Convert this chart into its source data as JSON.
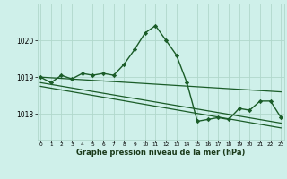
{
  "title": "Graphe pression niveau de la mer (hPa)",
  "background_color": "#cff0ea",
  "grid_color": "#b0d8cc",
  "line_color": "#1a5c28",
  "x_ticks": [
    0,
    1,
    2,
    3,
    4,
    5,
    6,
    7,
    8,
    9,
    10,
    11,
    12,
    13,
    14,
    15,
    16,
    17,
    18,
    19,
    20,
    21,
    22,
    23
  ],
  "y_ticks": [
    1018,
    1019,
    1020
  ],
  "ylim": [
    1017.3,
    1021.0
  ],
  "xlim": [
    -0.3,
    23.3
  ],
  "series": [
    {
      "x": [
        0,
        1,
        2,
        3,
        4,
        5,
        6,
        7,
        8,
        9,
        10,
        11,
        12,
        13,
        14,
        15,
        16,
        17,
        18,
        19,
        20,
        21,
        22,
        23
      ],
      "y": [
        1019.0,
        1018.85,
        1019.05,
        1018.95,
        1019.1,
        1019.05,
        1019.1,
        1019.05,
        1019.35,
        1019.75,
        1020.2,
        1020.4,
        1020.0,
        1019.6,
        1018.85,
        1017.8,
        1017.85,
        1017.9,
        1017.85,
        1018.15,
        1018.1,
        1018.35,
        1018.35,
        1017.9
      ],
      "marker": "D",
      "markersize": 2.2,
      "linewidth": 1.0,
      "has_marker": true
    },
    {
      "x": [
        0,
        23
      ],
      "y": [
        1019.0,
        1018.6
      ],
      "marker": null,
      "markersize": 0,
      "linewidth": 0.9,
      "has_marker": false
    },
    {
      "x": [
        0,
        23
      ],
      "y": [
        1018.85,
        1017.75
      ],
      "marker": null,
      "markersize": 0,
      "linewidth": 0.9,
      "has_marker": false
    },
    {
      "x": [
        0,
        23
      ],
      "y": [
        1018.75,
        1017.62
      ],
      "marker": null,
      "markersize": 0,
      "linewidth": 0.9,
      "has_marker": false
    }
  ]
}
